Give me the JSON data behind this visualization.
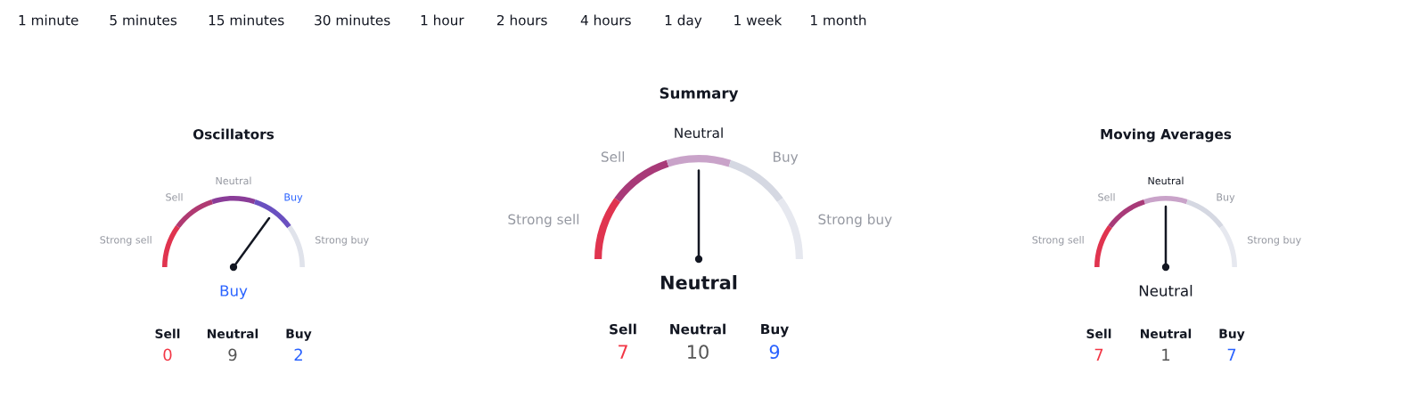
{
  "chart_data": [
    {
      "type": "other",
      "annotations": [
        "1 minute",
        "5 minutes",
        "15 minutes",
        "30 minutes",
        "1 hour",
        "2 hours",
        "4 hours",
        "1 day",
        "1 week",
        "1 month"
      ]
    },
    {
      "type": "donut",
      "title": "Oscillators",
      "categories": [
        "Strong sell",
        "Sell",
        "Neutral",
        "Buy",
        "Strong buy"
      ],
      "values": [
        20,
        20,
        20,
        20,
        20
      ],
      "colors": [
        "#e0344f",
        "#b03a72",
        "#8a3d98",
        "#6a50c0",
        "#e0e3eb"
      ],
      "needle": "Buy",
      "annotations": [
        "Buy"
      ]
    },
    {
      "type": "other",
      "categories": [
        "Sell",
        "Neutral",
        "Buy"
      ],
      "values": [
        0,
        9,
        2
      ],
      "colors": [
        "#f23645",
        "#555555",
        "#2962ff"
      ],
      "data_labels": true
    },
    {
      "type": "donut",
      "title": "Summary",
      "categories": [
        "Strong sell",
        "Sell",
        "Neutral",
        "Buy",
        "Strong buy"
      ],
      "values": [
        20,
        20,
        20,
        20,
        20
      ],
      "colors": [
        "#e0344f",
        "#a83a78",
        "#c9a3c9",
        "#d5d8e2",
        "#e6e8ef"
      ],
      "needle": "Neutral",
      "annotations": [
        "Neutral"
      ]
    },
    {
      "type": "other",
      "categories": [
        "Sell",
        "Neutral",
        "Buy"
      ],
      "values": [
        7,
        10,
        9
      ],
      "colors": [
        "#f23645",
        "#555555",
        "#2962ff"
      ],
      "data_labels": true
    },
    {
      "type": "donut",
      "title": "Moving Averages",
      "categories": [
        "Strong sell",
        "Sell",
        "Neutral",
        "Buy",
        "Strong buy"
      ],
      "values": [
        20,
        20,
        20,
        20,
        20
      ],
      "colors": [
        "#e0344f",
        "#a83a78",
        "#c9a3c9",
        "#d5d8e2",
        "#e6e8ef"
      ],
      "needle": "Neutral",
      "annotations": [
        "Neutral"
      ]
    },
    {
      "type": "other",
      "categories": [
        "Sell",
        "Neutral",
        "Buy"
      ],
      "values": [
        7,
        1,
        7
      ],
      "colors": [
        "#f23645",
        "#555555",
        "#2962ff"
      ],
      "data_labels": true
    }
  ]
}
